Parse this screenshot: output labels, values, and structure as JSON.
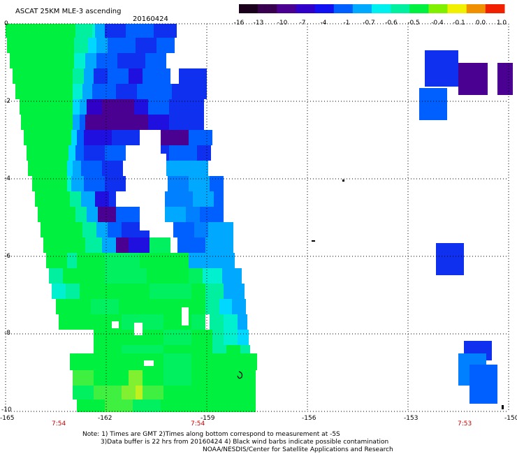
{
  "title": "ASCAT 25KM MLE-3 ascending",
  "date": "20160424",
  "colorbar": {
    "labels": [
      "-16",
      "-13",
      "-10",
      "-7",
      "-4",
      "-1",
      "-0.7",
      "-0.6",
      "-0.5",
      "-0.4",
      "-0.1",
      "0.0",
      "1.0"
    ],
    "colors": [
      "#1a001a",
      "#3a0050",
      "#4a0090",
      "#3000c8",
      "#1010f0",
      "#0060ff",
      "#00a8ff",
      "#00f0f0",
      "#00f0a0",
      "#00f040",
      "#80f000",
      "#f0f000",
      "#f09000",
      "#f02000"
    ]
  },
  "x_ticks": [
    "-165",
    "-162",
    "-159",
    "-156",
    "-153",
    "-150"
  ],
  "y_ticks": [
    "0",
    "-2",
    "-4",
    "-6",
    "-8",
    "-10"
  ],
  "time_labels": [
    "7:54",
    "7:54",
    "7:53"
  ],
  "notes": [
    "Note: 1) Times are GMT 2)Times along bottom correspond to measurement at -5S",
    "3)Data buffer is 22 hrs from 20160424 4) Black wind barbs indicate possible contamination",
    "NOAA/NESDIS/Center for Satellite Applications and Research"
  ],
  "chart_data": {
    "type": "heatmap",
    "title": "ASCAT 25KM MLE-3 ascending",
    "date": "20160424",
    "xlim": [
      -165,
      -150
    ],
    "ylim": [
      -10,
      0
    ],
    "x_ticks": [
      -165,
      -162,
      -159,
      -156,
      -153,
      -150
    ],
    "y_ticks": [
      0,
      -2,
      -4,
      -6,
      -8,
      -10
    ],
    "grid": true,
    "colorbar_position": "top-right",
    "colorbar_values": [
      -16,
      -13,
      -10,
      -7,
      -4,
      -1,
      -0.7,
      -0.6,
      -0.5,
      -0.4,
      -0.1,
      0.0,
      1.0
    ],
    "swaths": [
      {
        "time": "7:54",
        "lon": -163.5,
        "lat_range": [
          -10,
          0
        ]
      },
      {
        "time": "7:54",
        "lon": -159.5,
        "lat_range": [
          -10,
          0
        ]
      },
      {
        "time": "7:53",
        "lon": -151.5,
        "lat_range": [
          -10,
          -0.6
        ]
      }
    ]
  }
}
